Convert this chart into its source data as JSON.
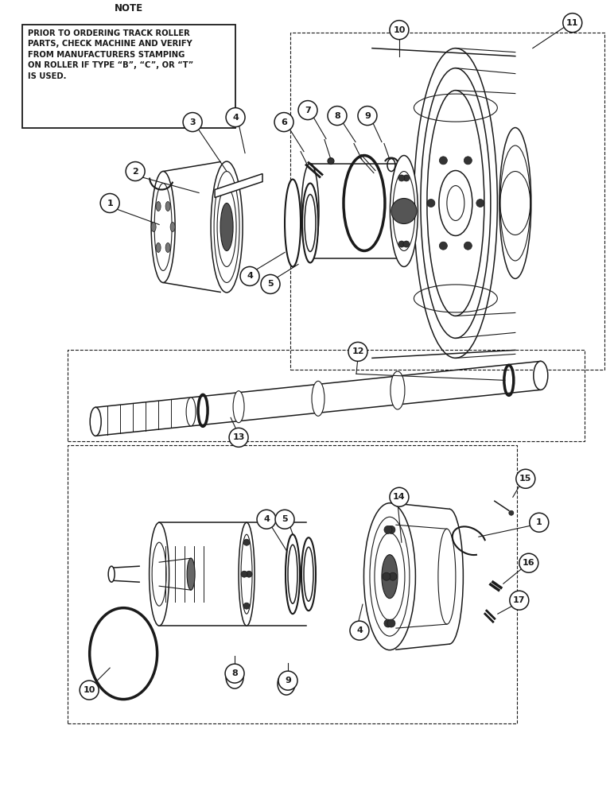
{
  "note_title": "NOTE",
  "note_text": "PRIOR TO ORDERING TRACK ROLLER\nPARTS, CHECK MACHINE AND VERIFY\nFROM MANUFACTURERS STAMPING\nON ROLLER IF TYPE “B”, “C”, OR “T”\nIS USED.",
  "bg_color": "#ffffff",
  "lc": "#1a1a1a",
  "figsize": [
    7.72,
    10.0
  ],
  "dpi": 100
}
